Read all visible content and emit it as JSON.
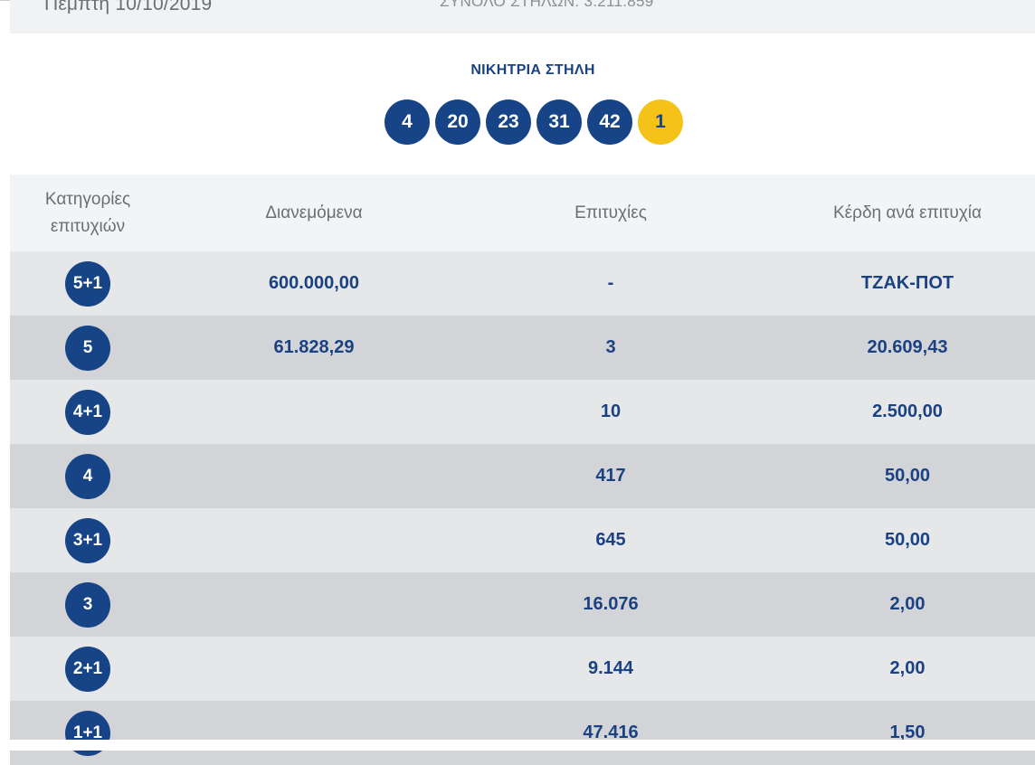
{
  "draw_info": {
    "date": "Πέμπτη 10/10/2019",
    "total_columns": "ΣΥΝΟΛΟ ΣΤΗΛΩΝ: 3.211.859"
  },
  "winning": {
    "title": "ΝΙΚΗΤΡΙΑ ΣΤΗΛΗ",
    "numbers": [
      "4",
      "20",
      "23",
      "31",
      "42"
    ],
    "joker": "1"
  },
  "table": {
    "headers": {
      "category": "Κατηγορίες επιτυχιών",
      "distributed": "Διανεμόμενα",
      "winners": "Επιτυχίες",
      "prize": "Κέρδη ανά επιτυχία"
    },
    "rows": [
      {
        "category": "5+1",
        "distributed": "600.000,00",
        "winners": "-",
        "prize": "ΤΖΑΚ-ΠΟΤ"
      },
      {
        "category": "5",
        "distributed": "61.828,29",
        "winners": "3",
        "prize": "20.609,43"
      },
      {
        "category": "4+1",
        "distributed": "",
        "winners": "10",
        "prize": "2.500,00"
      },
      {
        "category": "4",
        "distributed": "",
        "winners": "417",
        "prize": "50,00"
      },
      {
        "category": "3+1",
        "distributed": "",
        "winners": "645",
        "prize": "50,00"
      },
      {
        "category": "3",
        "distributed": "",
        "winners": "16.076",
        "prize": "2,00"
      },
      {
        "category": "2+1",
        "distributed": "",
        "winners": "9.144",
        "prize": "2,00"
      },
      {
        "category": "1+1",
        "distributed": "",
        "winners": "47.416",
        "prize": "1,50"
      }
    ]
  },
  "colors": {
    "brand_blue": "#164487",
    "text_blue": "#1a4283",
    "joker_yellow": "#f5c21a",
    "row_light": "#e6e7e9",
    "row_dark": "#d3d4d7"
  }
}
